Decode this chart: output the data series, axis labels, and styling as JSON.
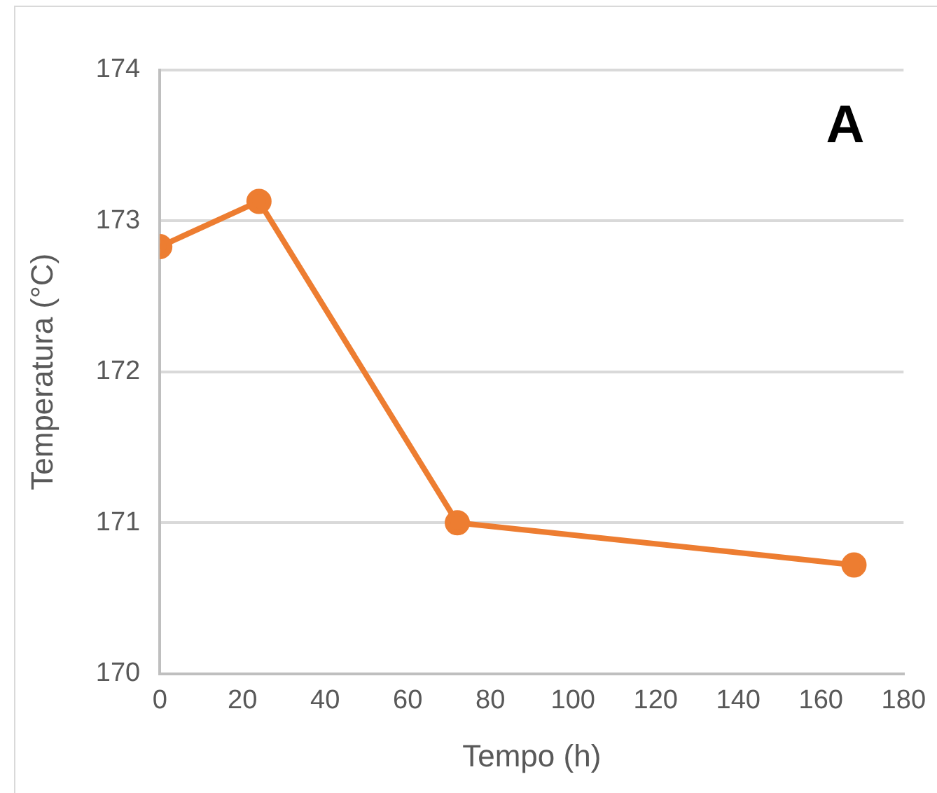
{
  "chart_data": {
    "type": "line",
    "xlabel": "Tempo (h)",
    "ylabel": "Temperatura (°C)",
    "annotations": [
      "A"
    ],
    "x": [
      0,
      24,
      72,
      168
    ],
    "series": [
      {
        "color": "#ed7d31",
        "values": [
          172.83,
          173.13,
          171.0,
          170.72
        ]
      }
    ],
    "xlim": [
      0,
      180
    ],
    "xticks": [
      0,
      20,
      40,
      60,
      80,
      100,
      120,
      140,
      160,
      180
    ],
    "ylim": [
      170,
      174
    ],
    "yticks": [
      170,
      171,
      172,
      173,
      174
    ],
    "grid": "y",
    "legend": false,
    "marker": "circle",
    "line_style": "solid"
  }
}
